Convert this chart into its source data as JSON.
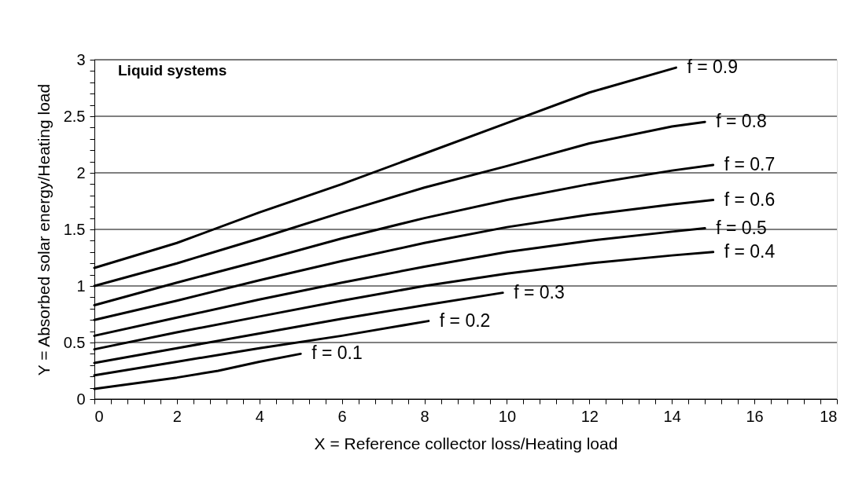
{
  "chart_data": {
    "type": "line",
    "title": "Liquid systems",
    "xlabel": "X = Reference collector loss/Heating load",
    "ylabel": "Y = Absorbed solar energy/Heating load",
    "xlim": [
      0,
      18
    ],
    "ylim": [
      0,
      3
    ],
    "xticks": [
      0,
      {
        "value": 0.4,
        "label": null
      },
      {
        "value": 0.8,
        "label": null
      },
      {
        "value": 1.2,
        "label": null
      },
      {
        "value": 1.6,
        "label": null
      },
      2,
      {
        "value": 2.4,
        "label": null
      },
      {
        "value": 2.8,
        "label": null
      },
      {
        "value": 3.2,
        "label": null
      },
      {
        "value": 3.6,
        "label": null
      },
      4,
      {
        "value": 4.4,
        "label": null
      },
      {
        "value": 4.8,
        "label": null
      },
      {
        "value": 5.2,
        "label": null
      },
      {
        "value": 5.6,
        "label": null
      },
      6,
      {
        "value": 6.4,
        "label": null
      },
      {
        "value": 6.8,
        "label": null
      },
      {
        "value": 7.2,
        "label": null
      },
      {
        "value": 7.6,
        "label": null
      },
      8,
      {
        "value": 8.4,
        "label": null
      },
      {
        "value": 8.8,
        "label": null
      },
      {
        "value": 9.2,
        "label": null
      },
      {
        "value": 9.6,
        "label": null
      },
      10,
      {
        "value": 10.4,
        "label": null
      },
      {
        "value": 10.8,
        "label": null
      },
      {
        "value": 11.2,
        "label": null
      },
      {
        "value": 11.6,
        "label": null
      },
      12,
      {
        "value": 12.4,
        "label": null
      },
      {
        "value": 12.8,
        "label": null
      },
      {
        "value": 13.2,
        "label": null
      },
      {
        "value": 13.6,
        "label": null
      },
      14,
      {
        "value": 14.4,
        "label": null
      },
      {
        "value": 14.8,
        "label": null
      },
      {
        "value": 15.2,
        "label": null
      },
      {
        "value": 15.6,
        "label": null
      },
      16,
      {
        "value": 16.4,
        "label": null
      },
      {
        "value": 16.8,
        "label": null
      },
      {
        "value": 17.2,
        "label": null
      },
      {
        "value": 17.6,
        "label": null
      },
      18
    ],
    "yticks": [
      0,
      {
        "value": 0.1,
        "label": null
      },
      {
        "value": 0.2,
        "label": null
      },
      {
        "value": 0.3,
        "label": null
      },
      {
        "value": 0.4,
        "label": null
      },
      0.5,
      {
        "value": 0.6,
        "label": null
      },
      {
        "value": 0.7,
        "label": null
      },
      {
        "value": 0.8,
        "label": null
      },
      {
        "value": 0.9,
        "label": null
      },
      1,
      {
        "value": 1.1,
        "label": null
      },
      {
        "value": 1.2,
        "label": null
      },
      {
        "value": 1.3,
        "label": null
      },
      {
        "value": 1.4,
        "label": null
      },
      1.5,
      {
        "value": 1.6,
        "label": null
      },
      {
        "value": 1.7,
        "label": null
      },
      {
        "value": 1.8,
        "label": null
      },
      {
        "value": 1.9,
        "label": null
      },
      2,
      {
        "value": 2.1,
        "label": null
      },
      {
        "value": 2.2,
        "label": null
      },
      {
        "value": 2.3,
        "label": null
      },
      {
        "value": 2.4,
        "label": null
      },
      2.5,
      {
        "value": 2.6,
        "label": null
      },
      {
        "value": 2.7,
        "label": null
      },
      {
        "value": 2.8,
        "label": null
      },
      {
        "value": 2.9,
        "label": null
      },
      3
    ],
    "grid": "y",
    "marker": "none",
    "line_style": "solid",
    "series": [
      {
        "name": "f = 0.9",
        "color": "#000000",
        "x": [
          0,
          2,
          4,
          6,
          8,
          10,
          12,
          14.1
        ],
        "values": [
          1.16,
          1.38,
          1.65,
          1.9,
          2.17,
          2.44,
          2.71,
          2.93
        ]
      },
      {
        "name": "f = 0.8",
        "color": "#000000",
        "x": [
          0,
          2,
          4,
          6,
          8,
          10,
          12,
          14,
          14.8
        ],
        "values": [
          1.0,
          1.2,
          1.42,
          1.65,
          1.87,
          2.06,
          2.26,
          2.41,
          2.45
        ]
      },
      {
        "name": "f = 0.7",
        "color": "#000000",
        "x": [
          0,
          2,
          4,
          6,
          8,
          10,
          12,
          14,
          15
        ],
        "values": [
          0.83,
          1.03,
          1.22,
          1.42,
          1.6,
          1.76,
          1.9,
          2.02,
          2.07
        ]
      },
      {
        "name": "f = 0.6",
        "color": "#000000",
        "x": [
          0,
          2,
          4,
          6,
          8,
          10,
          12,
          14,
          15
        ],
        "values": [
          0.7,
          0.87,
          1.05,
          1.22,
          1.38,
          1.52,
          1.63,
          1.72,
          1.76
        ]
      },
      {
        "name": "f = 0.5",
        "color": "#000000",
        "x": [
          0,
          2,
          4,
          6,
          8,
          10,
          12,
          14,
          14.8
        ],
        "values": [
          0.56,
          0.72,
          0.88,
          1.03,
          1.17,
          1.3,
          1.4,
          1.48,
          1.51
        ]
      },
      {
        "name": "f = 0.4",
        "color": "#000000",
        "x": [
          0,
          2,
          4,
          6,
          8,
          10,
          12,
          14,
          15
        ],
        "values": [
          0.44,
          0.59,
          0.73,
          0.87,
          1.0,
          1.11,
          1.2,
          1.27,
          1.3
        ]
      },
      {
        "name": "f = 0.3",
        "color": "#000000",
        "x": [
          0,
          2,
          4,
          6,
          8,
          9.9
        ],
        "values": [
          0.32,
          0.45,
          0.58,
          0.71,
          0.83,
          0.94
        ]
      },
      {
        "name": "f = 0.2",
        "color": "#000000",
        "x": [
          0,
          2,
          4,
          6,
          8.1
        ],
        "values": [
          0.21,
          0.33,
          0.45,
          0.56,
          0.69
        ]
      },
      {
        "name": "f = 0.1",
        "color": "#000000",
        "x": [
          0,
          2,
          3,
          4,
          5
        ],
        "values": [
          0.09,
          0.19,
          0.25,
          0.33,
          0.4
        ]
      }
    ]
  }
}
